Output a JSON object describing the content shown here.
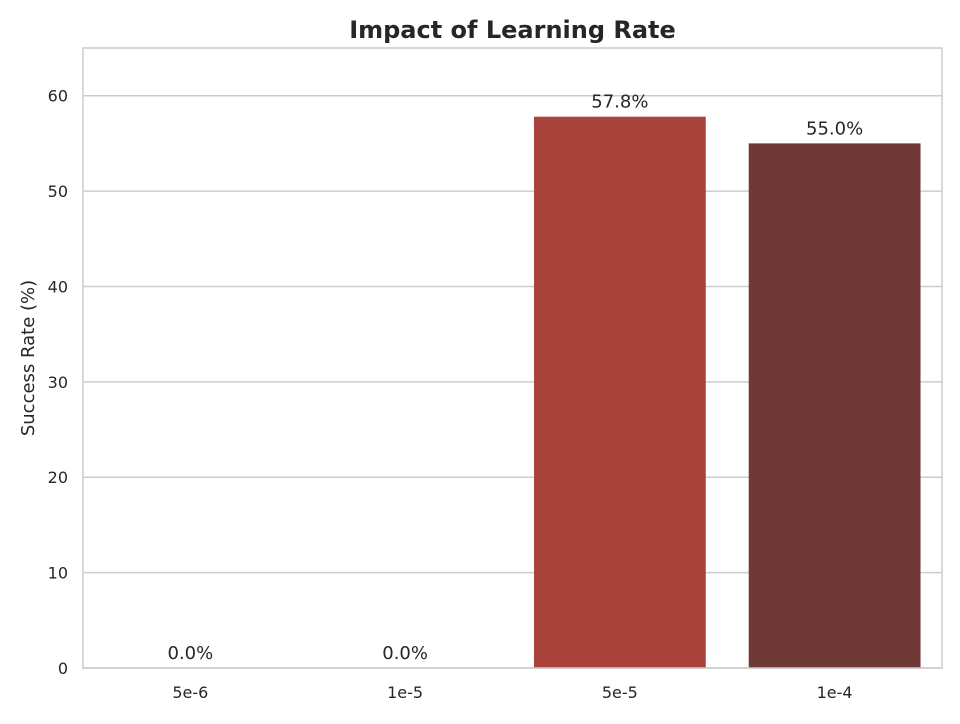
{
  "chart_data": {
    "type": "bar",
    "title": "Impact of Learning Rate",
    "xlabel": "",
    "ylabel": "Success Rate (%)",
    "categories": [
      "5e-6",
      "1e-5",
      "5e-5",
      "1e-4"
    ],
    "values": [
      0.0,
      0.0,
      57.8,
      55.0
    ],
    "value_labels": [
      "0.0%",
      "0.0%",
      "57.8%",
      "55.0%"
    ],
    "colors": [
      "#f1b6a8",
      "#e67b67",
      "#ab433d",
      "#6e3836"
    ],
    "ylim": [
      0,
      65
    ],
    "yticks": [
      0,
      10,
      20,
      30,
      40,
      50,
      60
    ],
    "grid": true,
    "grid_axis": "y"
  }
}
